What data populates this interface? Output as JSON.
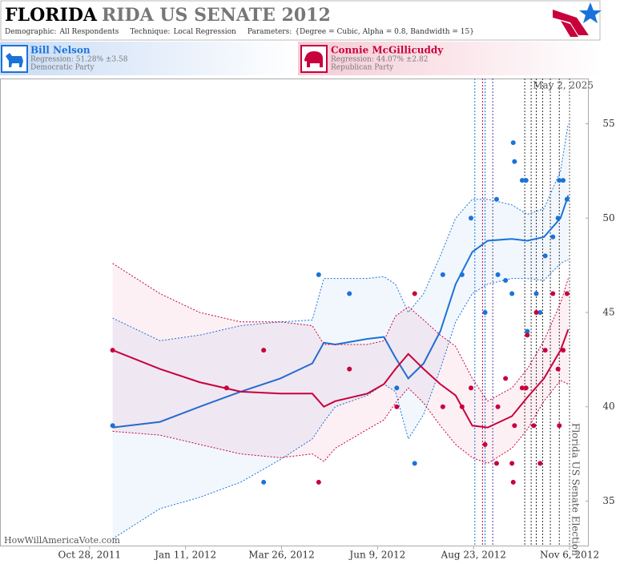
{
  "header": {
    "title_main": "FLORIDA",
    "title_rest": "RIDA US SENATE 2012",
    "params": [
      {
        "label": "Demographic:",
        "value": "All Respondents"
      },
      {
        "label": "Technique:",
        "value": "Local Regression"
      },
      {
        "label": "Parameters:",
        "value": "{Degree = Cubic, Alpha = 0.8, Bandwidth = 15}"
      }
    ]
  },
  "chart_data": {
    "type": "line",
    "date_note": "May 2, 2025",
    "election_label": "Florida US Senate Election",
    "election_date": "2012-11-06",
    "watermark": "HowWillAmericaVote.com",
    "xlim": [
      "2011-08-19",
      "2012-11-21"
    ],
    "xticks": [
      {
        "value": "2011-10-28",
        "label": "Oct 28, 2011"
      },
      {
        "value": "2012-01-11",
        "label": "Jan 11, 2012"
      },
      {
        "value": "2012-03-26",
        "label": "Mar 26, 2012"
      },
      {
        "value": "2012-06-09",
        "label": "Jun 9, 2012"
      },
      {
        "value": "2012-08-23",
        "label": "Aug 23, 2012"
      },
      {
        "value": "2012-11-06",
        "label": "Nov 6, 2012"
      }
    ],
    "ylim": [
      32.6,
      57.4
    ],
    "yticks": [
      35,
      40,
      45,
      50,
      55
    ],
    "events": [
      {
        "x": "2012-08-24",
        "color": "#1a73d9"
      },
      {
        "x": "2012-08-30",
        "color": "#c8003c"
      },
      {
        "x": "2012-09-01",
        "color": "#1a73d9"
      },
      {
        "x": "2012-09-07",
        "color": "#5a3a9a"
      },
      {
        "x": "2012-10-02",
        "color": "#333333"
      },
      {
        "x": "2012-10-07",
        "color": "#333333"
      },
      {
        "x": "2012-10-11",
        "color": "#333333"
      },
      {
        "x": "2012-10-16",
        "color": "#333333"
      },
      {
        "x": "2012-10-22",
        "color": "#333333"
      },
      {
        "x": "2012-10-29",
        "color": "#333333"
      }
    ],
    "x": [
      "2011-11-15",
      "2011-12-22",
      "2012-01-22",
      "2012-02-23",
      "2012-03-25",
      "2012-04-19",
      "2012-04-28",
      "2012-05-07",
      "2012-06-01",
      "2012-06-14",
      "2012-06-23",
      "2012-07-03",
      "2012-07-15",
      "2012-07-28",
      "2012-08-09",
      "2012-08-22",
      "2012-09-03",
      "2012-09-22",
      "2012-10-04",
      "2012-10-17",
      "2012-10-30",
      "2012-11-05"
    ],
    "series": [
      {
        "name": "Bill Nelson",
        "regression": "Regression: 51.28% ±3.58",
        "party": "Democratic Party",
        "color": "#1a73d9",
        "values": [
          38.9,
          39.2,
          40.0,
          40.8,
          41.5,
          42.3,
          43.4,
          43.3,
          43.6,
          43.7,
          42.6,
          41.5,
          42.3,
          44.0,
          46.5,
          48.2,
          48.8,
          48.9,
          48.8,
          49.0,
          50.0,
          51.2
        ],
        "upper": [
          44.7,
          43.5,
          43.8,
          44.3,
          44.5,
          44.6,
          46.8,
          46.8,
          46.8,
          46.9,
          46.5,
          45.0,
          46.0,
          48.0,
          50.0,
          51.0,
          51.0,
          50.7,
          50.2,
          50.5,
          52.5,
          55.0
        ],
        "lower": [
          33.0,
          34.6,
          35.2,
          36.0,
          37.2,
          38.3,
          39.2,
          40.0,
          40.6,
          41.2,
          40.8,
          38.3,
          39.6,
          42.0,
          44.5,
          46.0,
          46.5,
          46.8,
          46.8,
          46.7,
          47.6,
          47.8
        ],
        "points_x": [
          "2011-11-15",
          "2012-03-12",
          "2012-04-24",
          "2012-05-18",
          "2012-06-24",
          "2012-07-08",
          "2012-07-30",
          "2012-08-14",
          "2012-08-21",
          "2012-09-01",
          "2012-09-10",
          "2012-09-11",
          "2012-09-17",
          "2012-09-22",
          "2012-09-23",
          "2012-09-24",
          "2012-09-30",
          "2012-10-03",
          "2012-10-04",
          "2012-10-11",
          "2012-10-14",
          "2012-10-18",
          "2012-10-24",
          "2012-10-28",
          "2012-10-29",
          "2012-11-01",
          "2012-11-04"
        ],
        "points": [
          39,
          36,
          47,
          46,
          41,
          37,
          47,
          47,
          50,
          45,
          51,
          47,
          46.7,
          46,
          54,
          53,
          52,
          52,
          44,
          46,
          45,
          48,
          49,
          50,
          52,
          52,
          51
        ]
      },
      {
        "name": "Connie McGillicuddy",
        "regression": "Regression: 44.07% ±2.82",
        "party": "Republican Party",
        "color": "#c8003c",
        "values": [
          43.0,
          42.0,
          41.3,
          40.8,
          40.7,
          40.7,
          40.0,
          40.3,
          40.7,
          41.2,
          42.0,
          42.8,
          42.0,
          41.2,
          40.6,
          39.0,
          38.9,
          39.5,
          40.5,
          41.5,
          43.0,
          44.1
        ],
        "upper": [
          47.6,
          46.0,
          45.0,
          44.5,
          44.5,
          44.3,
          43.3,
          43.3,
          43.3,
          43.5,
          44.8,
          45.3,
          44.6,
          43.8,
          43.2,
          41.5,
          40.3,
          41.0,
          42.0,
          43.5,
          45.5,
          46.8
        ],
        "lower": [
          38.7,
          38.5,
          38.0,
          37.5,
          37.3,
          37.5,
          37.1,
          37.8,
          38.8,
          39.3,
          40.2,
          41.0,
          40.2,
          39.0,
          38.0,
          37.3,
          37.0,
          37.8,
          38.8,
          40.3,
          41.4,
          41.2
        ],
        "points_x": [
          "2011-11-15",
          "2012-02-12",
          "2012-03-12",
          "2012-04-24",
          "2012-05-18",
          "2012-06-24",
          "2012-07-08",
          "2012-07-30",
          "2012-08-14",
          "2012-08-21",
          "2012-09-01",
          "2012-09-10",
          "2012-09-11",
          "2012-09-17",
          "2012-09-22",
          "2012-09-23",
          "2012-09-24",
          "2012-09-30",
          "2012-10-03",
          "2012-10-04",
          "2012-10-09",
          "2012-10-11",
          "2012-10-14",
          "2012-10-18",
          "2012-10-24",
          "2012-10-28",
          "2012-10-29",
          "2012-11-01",
          "2012-11-04"
        ],
        "points": [
          43,
          41,
          43,
          36,
          42,
          40,
          46,
          40,
          40,
          41,
          38,
          37,
          40,
          41.5,
          37,
          36,
          39,
          41,
          41,
          43.8,
          39,
          45,
          37,
          43,
          46,
          42,
          39,
          43,
          46
        ]
      }
    ]
  }
}
